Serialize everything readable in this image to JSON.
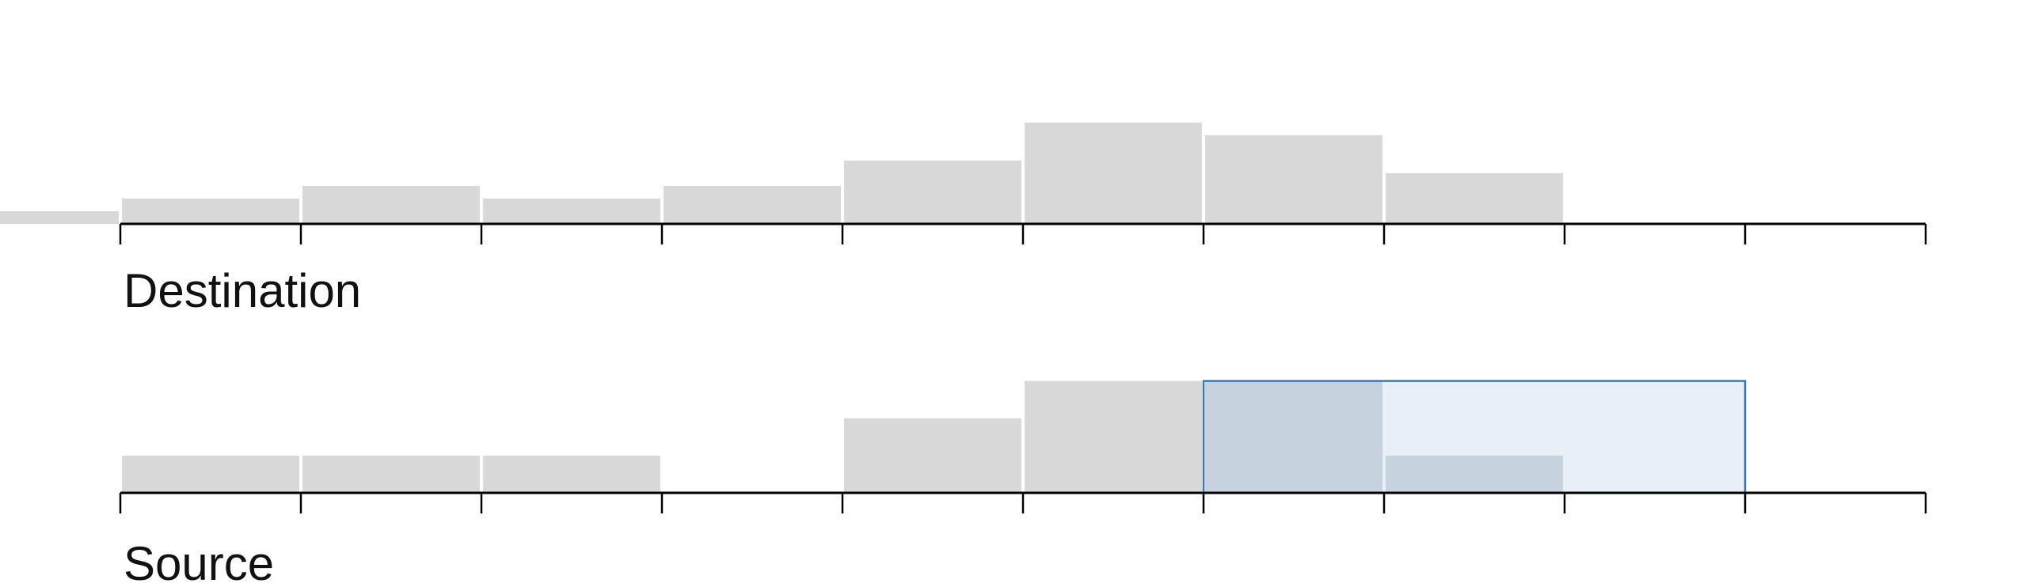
{
  "colors": {
    "bar": "#d8d8d8",
    "axis": "#000000",
    "brush_fill": "#c9d9ea",
    "brush_stroke": "#3f76a6",
    "bar_in_brush": "#c5cdd6"
  },
  "chart_data": [
    {
      "type": "bar",
      "title": "Destination",
      "bins": [
        -1,
        0,
        1,
        2,
        3,
        4,
        5,
        6,
        7
      ],
      "bin_width": 1,
      "values": [
        1,
        2,
        3,
        2,
        3,
        5,
        8,
        7,
        4
      ],
      "ylim": [
        0,
        10
      ],
      "xlim": [
        0,
        10
      ],
      "ticks": [
        0,
        1,
        2,
        3,
        4,
        5,
        6,
        7,
        8,
        9,
        10
      ],
      "note": "leftmost bar is clipped at the left edge of the view"
    },
    {
      "type": "bar",
      "title": "Source",
      "bins": [
        0,
        1,
        2,
        3,
        4,
        5,
        6,
        7
      ],
      "bin_width": 1,
      "values": [
        1,
        1,
        1,
        0,
        2,
        3,
        3,
        1
      ],
      "ylim": [
        0,
        3.5
      ],
      "xlim": [
        0,
        10
      ],
      "ticks": [
        0,
        1,
        2,
        3,
        4,
        5,
        6,
        7,
        8,
        9,
        10
      ],
      "brush": {
        "x_start": 6,
        "x_end": 9,
        "y_top": 3
      }
    }
  ]
}
